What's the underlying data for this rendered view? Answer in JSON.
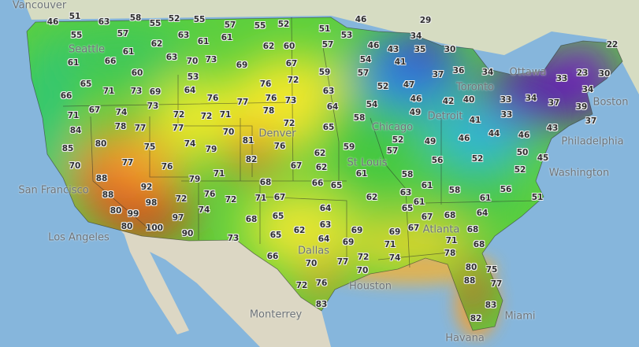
{
  "map": {
    "type": "surface temperature map",
    "units_implied": "°F",
    "color_scale": {
      "cold": "#5a1fa8",
      "cool": "#2e8fe0",
      "mild": "#2fc44a",
      "warm": "#f2e82a",
      "hot": "#ee7a1c",
      "very_hot": "#c7301e"
    },
    "cities": [
      "Vancouver",
      "Seattle",
      "San Francisco",
      "Los Angeles",
      "Denver",
      "Dallas",
      "Houston",
      "Monterrey",
      "Havana",
      "Miami",
      "St Louis",
      "Chicago",
      "Detroit",
      "Toronto",
      "Ottawa",
      "Boston",
      "Philadelphia",
      "Washington",
      "Atlanta"
    ],
    "temperatures": [
      "46",
      "51",
      "63",
      "58",
      "52",
      "55",
      "57",
      "55",
      "57",
      "55",
      "63",
      "61",
      "61",
      "62",
      "61",
      "63",
      "70",
      "73",
      "61",
      "66",
      "60",
      "53",
      "65",
      "71",
      "73",
      "69",
      "64",
      "76",
      "66",
      "67",
      "74",
      "73",
      "71",
      "72",
      "72",
      "71",
      "55",
      "52",
      "51",
      "46",
      "29",
      "53",
      "34",
      "57",
      "46",
      "43",
      "35",
      "62",
      "60",
      "69",
      "67",
      "54",
      "41",
      "59",
      "57",
      "47",
      "76",
      "72",
      "52",
      "63",
      "77",
      "76",
      "73",
      "46",
      "64",
      "54",
      "78",
      "49",
      "58",
      "72",
      "30",
      "22",
      "37",
      "36",
      "34",
      "23",
      "30",
      "33",
      "34",
      "42",
      "40",
      "33",
      "34",
      "37",
      "39",
      "33",
      "41",
      "37",
      "84",
      "78",
      "77",
      "77",
      "70",
      "80",
      "74",
      "85",
      "75",
      "79",
      "77",
      "76",
      "70",
      "71",
      "88",
      "79",
      "92",
      "76",
      "72",
      "72",
      "88",
      "98",
      "80",
      "99",
      "74",
      "97",
      "80",
      "100",
      "90",
      "73",
      "81",
      "82",
      "76",
      "65",
      "59",
      "52",
      "49",
      "57",
      "62",
      "67",
      "62",
      "61",
      "58",
      "68",
      "66",
      "65",
      "61",
      "71",
      "67",
      "62",
      "63",
      "64",
      "65",
      "68",
      "65",
      "63",
      "67",
      "69",
      "69",
      "62",
      "65",
      "64",
      "69",
      "43",
      "44",
      "46",
      "46",
      "50",
      "56",
      "52",
      "45",
      "52",
      "61",
      "58",
      "56",
      "51",
      "61",
      "64",
      "68",
      "67",
      "66",
      "70",
      "77",
      "72",
      "76",
      "83",
      "68",
      "71",
      "71",
      "68",
      "72",
      "74",
      "78",
      "70",
      "80",
      "75",
      "88",
      "77",
      "83",
      "82"
    ]
  }
}
